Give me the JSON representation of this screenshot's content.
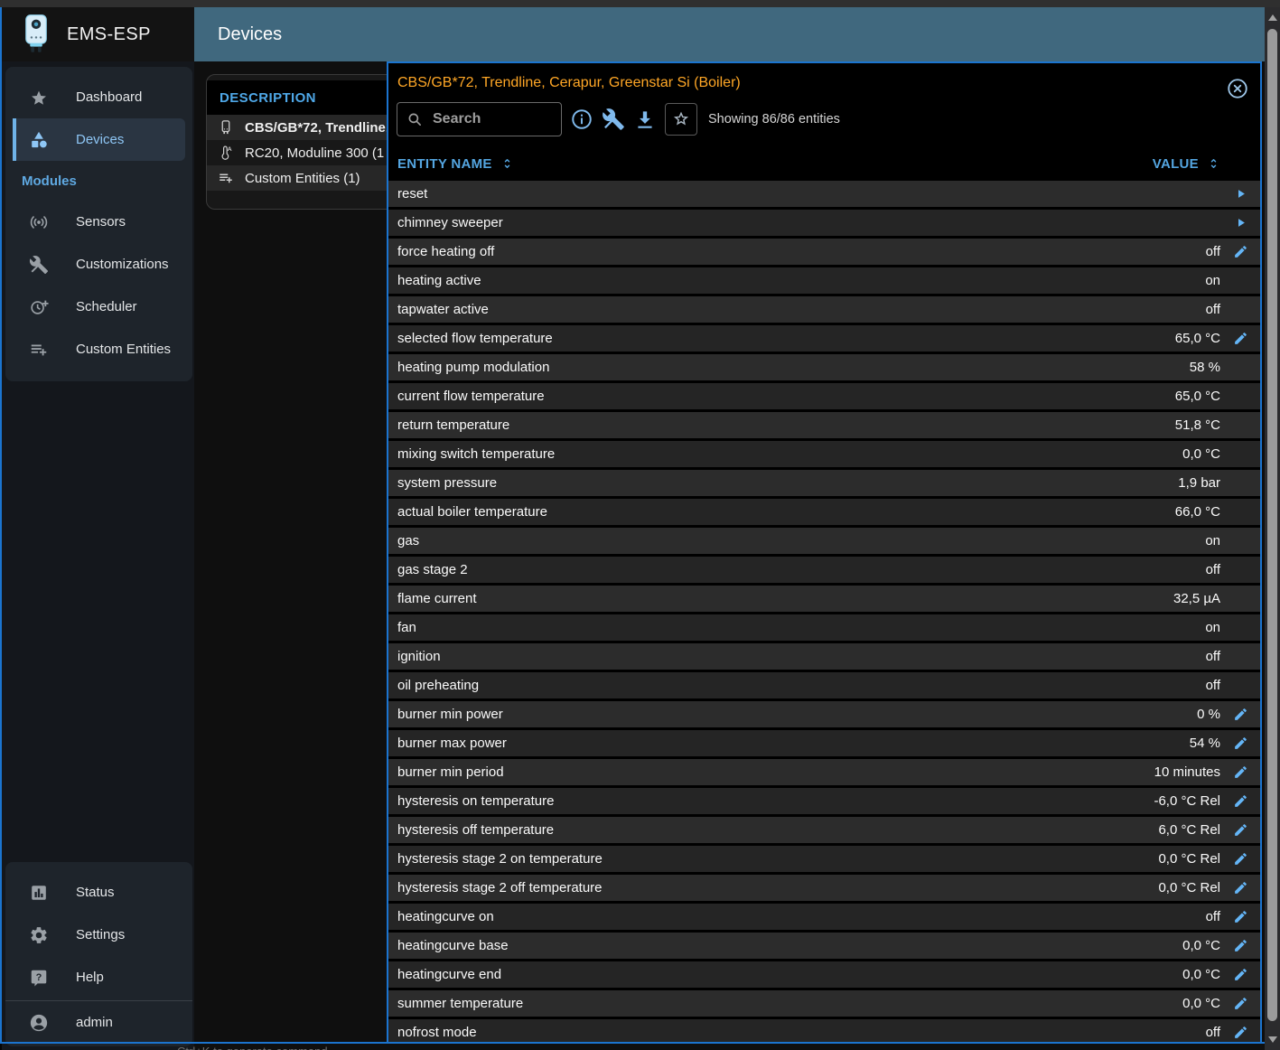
{
  "app": {
    "title": "EMS-ESP",
    "page_title": "Devices"
  },
  "sidebar": {
    "main_items": [
      {
        "label": "Dashboard",
        "icon": "star-icon",
        "selected": false
      },
      {
        "label": "Devices",
        "icon": "category-icon",
        "selected": true
      }
    ],
    "modules_label": "Modules",
    "module_items": [
      {
        "label": "Sensors",
        "icon": "sensors-icon"
      },
      {
        "label": "Customizations",
        "icon": "construction-icon"
      },
      {
        "label": "Scheduler",
        "icon": "more-time-icon"
      },
      {
        "label": "Custom Entities",
        "icon": "playlist-add-icon"
      }
    ],
    "bottom_items": [
      {
        "label": "Status",
        "icon": "chart-box-icon"
      },
      {
        "label": "Settings",
        "icon": "gear-icon"
      },
      {
        "label": "Help",
        "icon": "help-icon"
      }
    ],
    "user": {
      "label": "admin",
      "icon": "account-icon"
    }
  },
  "device_list": {
    "header": "DESCRIPTION",
    "rows": [
      {
        "label": "CBS/GB*72, Trendline,",
        "icon": "boiler-icon",
        "selected": true
      },
      {
        "label": "RC20, Moduline 300  (1",
        "icon": "thermostat-icon",
        "selected": false
      },
      {
        "label": "Custom Entities  (1)",
        "icon": "playlist-add-icon",
        "selected": false
      }
    ]
  },
  "dialog": {
    "title": "CBS/GB*72, Trendline, Cerapur, Greenstar Si (Boiler)",
    "search_placeholder": "Search",
    "showing_text": "Showing 86/86 entities",
    "columns": [
      "ENTITY NAME",
      "VALUE"
    ],
    "rows": [
      {
        "name": "reset",
        "value": "",
        "action": "run"
      },
      {
        "name": "chimney sweeper",
        "value": "",
        "action": "run"
      },
      {
        "name": "force heating off",
        "value": "off",
        "action": "edit"
      },
      {
        "name": "heating active",
        "value": "on",
        "action": ""
      },
      {
        "name": "tapwater active",
        "value": "off",
        "action": ""
      },
      {
        "name": "selected flow temperature",
        "value": "65,0 °C",
        "action": "edit"
      },
      {
        "name": "heating pump modulation",
        "value": "58 %",
        "action": ""
      },
      {
        "name": "current flow temperature",
        "value": "65,0 °C",
        "action": ""
      },
      {
        "name": "return temperature",
        "value": "51,8 °C",
        "action": ""
      },
      {
        "name": "mixing switch temperature",
        "value": "0,0 °C",
        "action": ""
      },
      {
        "name": "system pressure",
        "value": "1,9 bar",
        "action": ""
      },
      {
        "name": "actual boiler temperature",
        "value": "66,0 °C",
        "action": ""
      },
      {
        "name": "gas",
        "value": "on",
        "action": ""
      },
      {
        "name": "gas stage 2",
        "value": "off",
        "action": ""
      },
      {
        "name": "flame current",
        "value": "32,5 µA",
        "action": ""
      },
      {
        "name": "fan",
        "value": "on",
        "action": ""
      },
      {
        "name": "ignition",
        "value": "off",
        "action": ""
      },
      {
        "name": "oil preheating",
        "value": "off",
        "action": ""
      },
      {
        "name": "burner min power",
        "value": "0 %",
        "action": "edit"
      },
      {
        "name": "burner max power",
        "value": "54 %",
        "action": "edit"
      },
      {
        "name": "burner min period",
        "value": "10 minutes",
        "action": "edit"
      },
      {
        "name": "hysteresis on temperature",
        "value": "-6,0 °C Rel",
        "action": "edit"
      },
      {
        "name": "hysteresis off temperature",
        "value": "6,0 °C Rel",
        "action": "edit"
      },
      {
        "name": "hysteresis stage 2 on temperature",
        "value": "0,0 °C Rel",
        "action": "edit"
      },
      {
        "name": "hysteresis stage 2 off temperature",
        "value": "0,0 °C Rel",
        "action": "edit"
      },
      {
        "name": "heatingcurve on",
        "value": "off",
        "action": "edit"
      },
      {
        "name": "heatingcurve base",
        "value": "0,0 °C",
        "action": "edit"
      },
      {
        "name": "heatingcurve end",
        "value": "0,0 °C",
        "action": "edit"
      },
      {
        "name": "summer temperature",
        "value": "0,0 °C",
        "action": "edit"
      },
      {
        "name": "nofrost mode",
        "value": "off",
        "action": "edit"
      }
    ]
  },
  "footer_hint": "Ctrl+K to generate command",
  "colors": {
    "appbar": "#40687e",
    "dialog_border": "#1b74cf",
    "device_title_orange": "#ffa726",
    "accent_blue": "#64b5f6",
    "table_header_blue": "#54a5e0",
    "paper": "#1e242b",
    "selected_item_bg": "#2a3542"
  }
}
